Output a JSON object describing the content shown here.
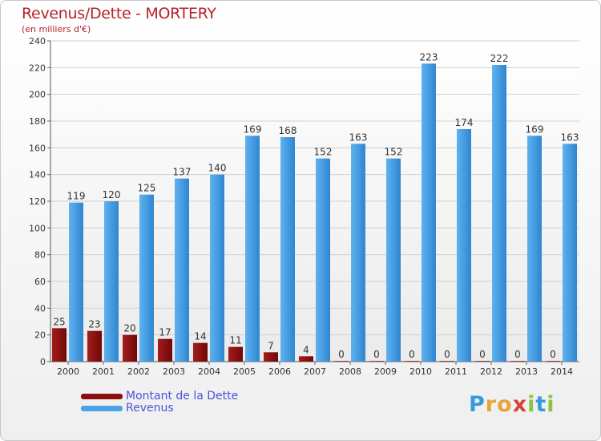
{
  "chart_data": {
    "type": "bar",
    "title": "Revenus/Dette - MORTERY",
    "subtitle": "(en milliers d'€)",
    "categories": [
      "2000",
      "2001",
      "2002",
      "2003",
      "2004",
      "2005",
      "2006",
      "2007",
      "2008",
      "2009",
      "2010",
      "2011",
      "2012",
      "2013",
      "2014"
    ],
    "series": [
      {
        "name": "Montant de la Dette",
        "color": "#8b0f0f",
        "values": [
          25,
          23,
          20,
          17,
          14,
          11,
          7,
          4,
          0,
          0,
          0,
          0,
          0,
          0,
          0
        ]
      },
      {
        "name": "Revenus",
        "color": "#4da3e8",
        "values": [
          119,
          120,
          125,
          137,
          140,
          169,
          168,
          152,
          163,
          152,
          223,
          174,
          222,
          169,
          163
        ]
      }
    ],
    "ylim": [
      0,
      240
    ],
    "yticks": [
      0,
      20,
      40,
      60,
      80,
      100,
      120,
      140,
      160,
      180,
      200,
      220,
      240
    ],
    "grid": true,
    "legend_position": "bottom-left"
  },
  "logo": {
    "letters": [
      "P",
      "r",
      "o",
      "x",
      "i",
      "t",
      "i"
    ],
    "colors": [
      "#3a9ad9",
      "#e8a33a",
      "#e8a33a",
      "#d9413a",
      "#8ac43f",
      "#3a9ad9",
      "#8ac43f"
    ]
  }
}
